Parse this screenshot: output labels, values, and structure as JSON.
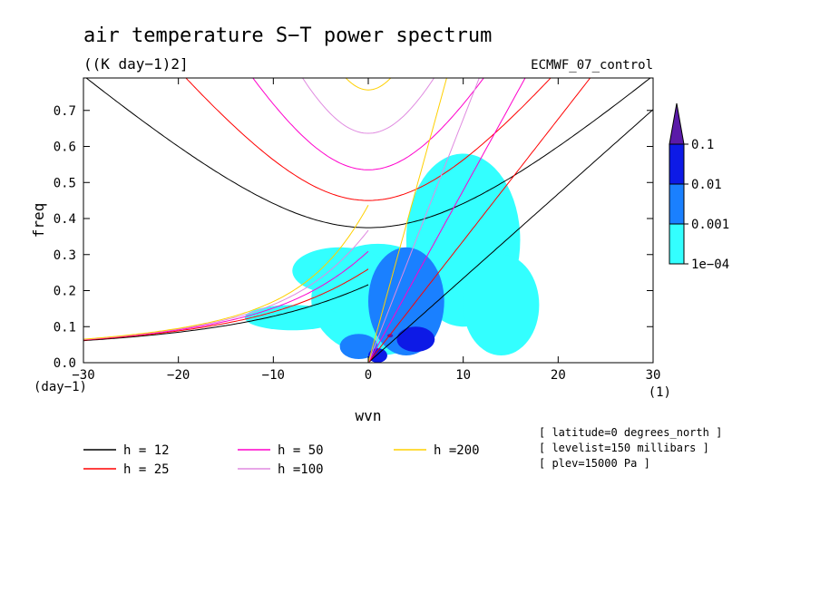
{
  "chart_data": {
    "type": "heatmap",
    "title": "air temperature S−T power spectrum",
    "subtitle": "((K day−1)2]",
    "source_label": "ECMWF_07_control",
    "xlabel": "wvn",
    "ylabel": "freq",
    "x_unit": "(1)",
    "y_unit": "(day−1)",
    "xlim": [
      -30,
      30
    ],
    "ylim": [
      0,
      0.79
    ],
    "x_ticks": [
      -30,
      -20,
      -10,
      0,
      10,
      20,
      30
    ],
    "x_tick_labels": [
      "−30",
      "−20",
      "−10",
      "0",
      "10",
      "20",
      "30"
    ],
    "y_ticks": [
      0,
      0.1,
      0.2,
      0.3,
      0.4,
      0.5,
      0.6,
      0.7
    ],
    "y_tick_labels": [
      "0.0",
      "0.1",
      "0.2",
      "0.3",
      "0.4",
      "0.5",
      "0.6",
      "0.7"
    ],
    "colorbar": {
      "levels": [
        0.0001,
        0.001,
        0.01,
        0.1
      ],
      "labels": [
        "1e−04",
        "0.001",
        "0.01",
        "0.1"
      ],
      "colors": [
        "#33ffff",
        "#1a80ff",
        "#0d1ae6",
        "#5a1aa8"
      ]
    },
    "power_regions": [
      {
        "level": 0.0001,
        "x": [
          -6,
          8
        ],
        "y": [
          0.02,
          0.33
        ]
      },
      {
        "level": 0.0001,
        "x": [
          4,
          16
        ],
        "y": [
          0.1,
          0.58
        ]
      },
      {
        "level": 0.0001,
        "x": [
          -8,
          2
        ],
        "y": [
          0.19,
          0.32
        ]
      },
      {
        "level": 0.0001,
        "x": [
          10,
          18
        ],
        "y": [
          0.02,
          0.3
        ]
      },
      {
        "level": 0.0001,
        "x": [
          -13,
          -3
        ],
        "y": [
          0.09,
          0.16
        ]
      },
      {
        "level": 0.001,
        "x": [
          0,
          8
        ],
        "y": [
          0.02,
          0.32
        ]
      },
      {
        "level": 0.001,
        "x": [
          -3,
          1
        ],
        "y": [
          0.01,
          0.08
        ]
      },
      {
        "level": 0.01,
        "x": [
          3,
          7
        ],
        "y": [
          0.03,
          0.1
        ]
      },
      {
        "level": 0.01,
        "x": [
          0,
          2
        ],
        "y": [
          0.0,
          0.04
        ]
      },
      {
        "level": 0.1,
        "x": [
          2,
          2.6
        ],
        "y": [
          0.07,
          0.08
        ]
      }
    ],
    "dispersion_curves": [
      {
        "name": "h = 12",
        "h": 12,
        "color": "#000000"
      },
      {
        "name": "h = 25",
        "h": 25,
        "color": "#ff0000"
      },
      {
        "name": "h = 50",
        "h": 50,
        "color": "#ff00cc"
      },
      {
        "name": "h =100",
        "h": 100,
        "color": "#e08ae0"
      },
      {
        "name": "h =200",
        "h": 200,
        "color": "#ffd000"
      }
    ],
    "info_lines": [
      "[ latitude=0 degrees_north ]",
      "[ levelist=150 millibars ]",
      "[ plev=15000 Pa ]"
    ]
  }
}
